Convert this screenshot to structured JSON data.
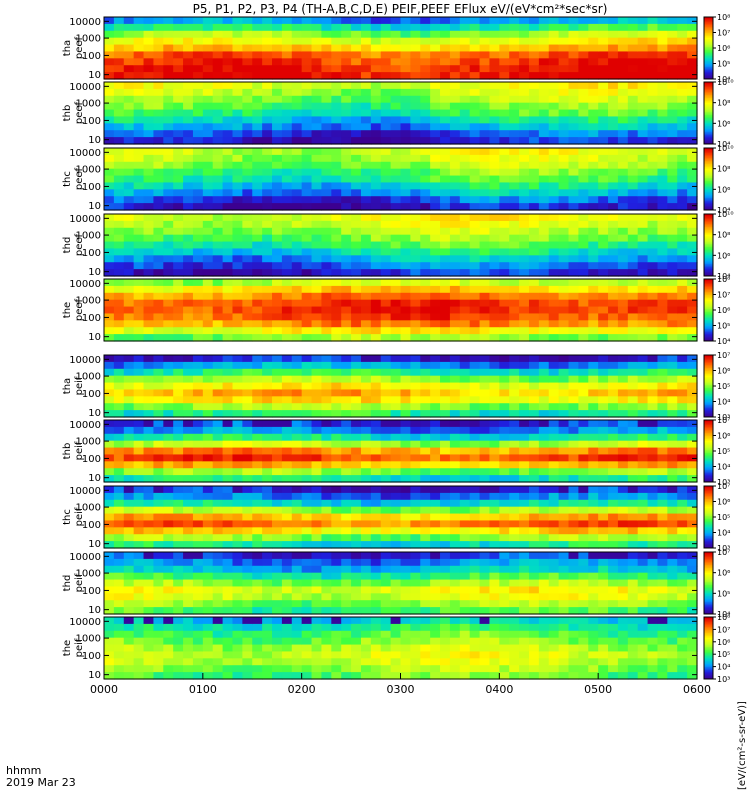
{
  "chart_data": {
    "type": "heatmap",
    "title": "P5, P1, P2, P3, P4 (TH-A,B,C,D,E) PEIF,PEEF EFlux eV/(eV*cm²*sec*sr)",
    "x_ticks": [
      "0000",
      "0100",
      "0200",
      "0300",
      "0400",
      "0500",
      "0600"
    ],
    "x_label_lines": [
      "hhmm",
      "2019 Mar 23"
    ],
    "x_range": [
      "0000",
      "0600"
    ],
    "y_scale": "log",
    "y_ticks": [
      "10",
      "100",
      "1000",
      "10000"
    ],
    "colorbar_unit": "[eV/(cm²-s-sr-eV)]",
    "colorscale": [
      "#3c0090",
      "#2020e0",
      "#00a0ff",
      "#00e0c0",
      "#40ff40",
      "#c0ff20",
      "#ffff00",
      "#ffb000",
      "#ff5000",
      "#e00000"
    ],
    "panels": [
      {
        "probe": "tha",
        "instrument": "peef",
        "cb_min_exp": 4,
        "cb_max_exp": 8,
        "cb_labels": [
          "10⁴",
          "10⁵",
          "10⁶",
          "10⁷",
          "10⁸"
        ],
        "profile": [
          0.2,
          0.35,
          0.5,
          0.62,
          0.72,
          0.85,
          0.9,
          0.95,
          0.97
        ]
      },
      {
        "probe": "thb",
        "instrument": "peef",
        "cb_min_exp": 4,
        "cb_max_exp": 10,
        "cb_labels": [
          "10⁴",
          "10⁶",
          "10⁸",
          "10¹⁰"
        ],
        "profile": [
          0.6,
          0.55,
          0.5,
          0.44,
          0.38,
          0.3,
          0.22,
          0.12,
          0.05
        ]
      },
      {
        "probe": "thc",
        "instrument": "peef",
        "cb_min_exp": 4,
        "cb_max_exp": 10,
        "cb_labels": [
          "10⁴",
          "10⁶",
          "10⁸",
          "10¹⁰"
        ],
        "profile": [
          0.58,
          0.55,
          0.5,
          0.44,
          0.38,
          0.3,
          0.22,
          0.12,
          0.05
        ]
      },
      {
        "probe": "thd",
        "instrument": "peef",
        "cb_min_exp": 4,
        "cb_max_exp": 10,
        "cb_labels": [
          "10⁴",
          "10⁶",
          "10⁸",
          "10¹⁰"
        ],
        "profile": [
          0.62,
          0.58,
          0.53,
          0.47,
          0.4,
          0.32,
          0.24,
          0.16,
          0.08
        ]
      },
      {
        "probe": "the",
        "instrument": "peef",
        "cb_min_exp": 4,
        "cb_max_exp": 8,
        "cb_labels": [
          "10⁴",
          "10⁵",
          "10⁶",
          "10⁷",
          "10⁸"
        ],
        "profile": [
          0.55,
          0.7,
          0.82,
          0.9,
          0.92,
          0.88,
          0.8,
          0.65,
          0.5
        ]
      },
      {
        "probe": "tha",
        "instrument": "peif",
        "cb_min_exp": 3,
        "cb_max_exp": 7,
        "cb_labels": [
          "10³",
          "10⁴",
          "10⁵",
          "10⁶",
          "10⁷"
        ],
        "profile": [
          0.1,
          0.22,
          0.38,
          0.52,
          0.66,
          0.76,
          0.68,
          0.52,
          0.38
        ]
      },
      {
        "probe": "thb",
        "instrument": "peif",
        "cb_min_exp": 3,
        "cb_max_exp": 7,
        "cb_labels": [
          "10³",
          "10⁴",
          "10⁵",
          "10⁶",
          "10⁷"
        ],
        "profile": [
          0.12,
          0.2,
          0.35,
          0.55,
          0.8,
          0.9,
          0.75,
          0.5,
          0.35
        ]
      },
      {
        "probe": "thc",
        "instrument": "peif",
        "cb_min_exp": 3,
        "cb_max_exp": 7,
        "cb_labels": [
          "10³",
          "10⁴",
          "10⁵",
          "10⁶",
          "10⁷"
        ],
        "profile": [
          0.1,
          0.18,
          0.32,
          0.52,
          0.75,
          0.86,
          0.7,
          0.5,
          0.34
        ]
      },
      {
        "probe": "thd",
        "instrument": "peif",
        "cb_min_exp": 4,
        "cb_max_exp": 7,
        "cb_labels": [
          "10⁴",
          "10⁵",
          "10⁶",
          "10⁷"
        ],
        "profile": [
          0.12,
          0.2,
          0.28,
          0.4,
          0.52,
          0.64,
          0.6,
          0.5,
          0.42
        ]
      },
      {
        "probe": "the",
        "instrument": "peif",
        "cb_min_exp": 3,
        "cb_max_exp": 8,
        "cb_labels": [
          "10³",
          "10⁴",
          "10⁵",
          "10⁶",
          "10⁷",
          "10⁸"
        ],
        "profile": [
          0.3,
          0.38,
          0.44,
          0.5,
          0.56,
          0.6,
          0.58,
          0.52,
          0.46
        ]
      }
    ]
  }
}
